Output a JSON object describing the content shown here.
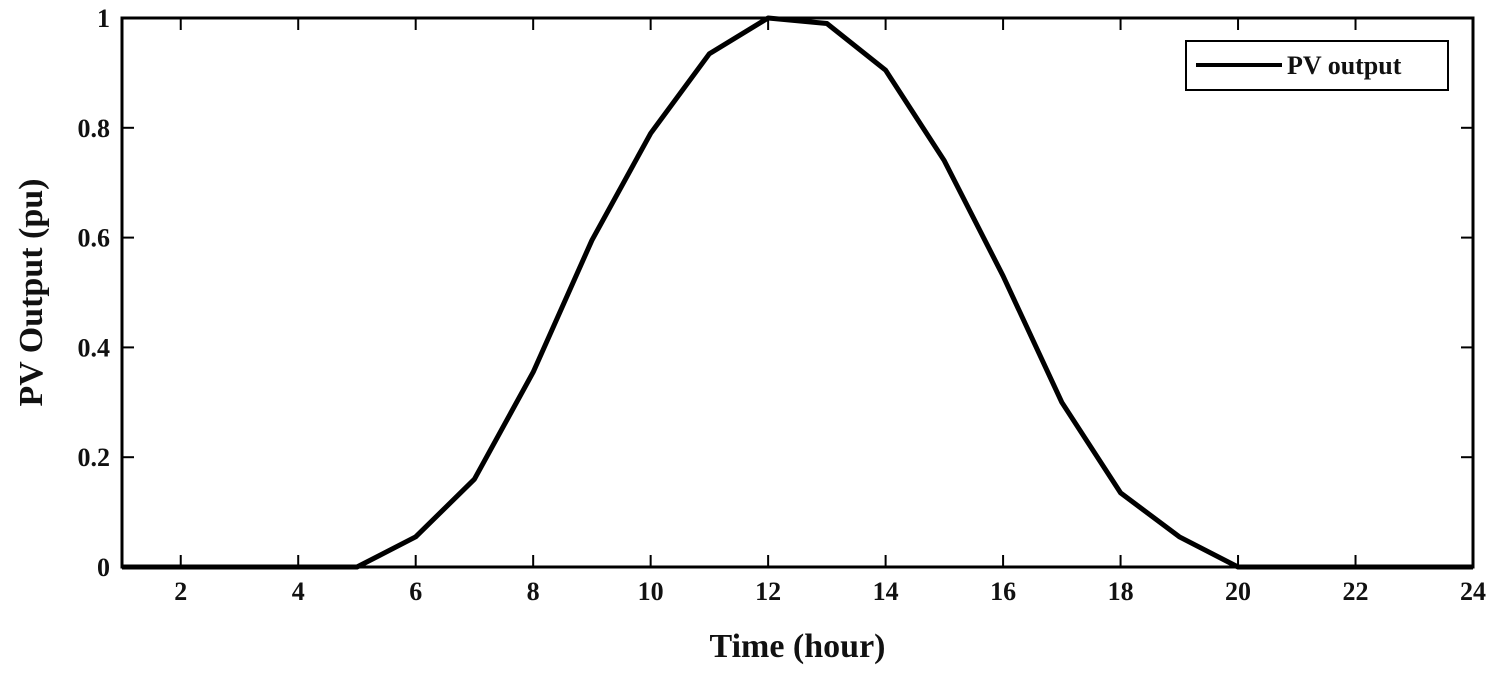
{
  "chart_data": {
    "type": "line",
    "title": "",
    "xlabel": "Time (hour)",
    "ylabel": "PV Output (pu)",
    "xlim": [
      1,
      24
    ],
    "ylim": [
      0,
      1
    ],
    "xticks": [
      2,
      4,
      6,
      8,
      10,
      12,
      14,
      16,
      18,
      20,
      22,
      24
    ],
    "yticks": [
      0,
      0.2,
      0.4,
      0.6,
      0.8,
      1
    ],
    "ytick_labels": [
      "0",
      "0.2",
      "0.4",
      "0.6",
      "0.8",
      "1"
    ],
    "grid": false,
    "legend": {
      "position": "top-right"
    },
    "x": [
      1,
      2,
      3,
      4,
      5,
      6,
      7,
      8,
      9,
      10,
      11,
      12,
      13,
      14,
      15,
      16,
      17,
      18,
      19,
      20,
      21,
      22,
      23,
      24
    ],
    "series": [
      {
        "name": "PV output",
        "color": "#000000",
        "values": [
          0,
          0,
          0,
          0,
          0,
          0.055,
          0.16,
          0.355,
          0.595,
          0.79,
          0.935,
          1.0,
          0.99,
          0.905,
          0.74,
          0.53,
          0.3,
          0.135,
          0.055,
          0,
          0,
          0,
          0,
          0
        ]
      }
    ]
  }
}
